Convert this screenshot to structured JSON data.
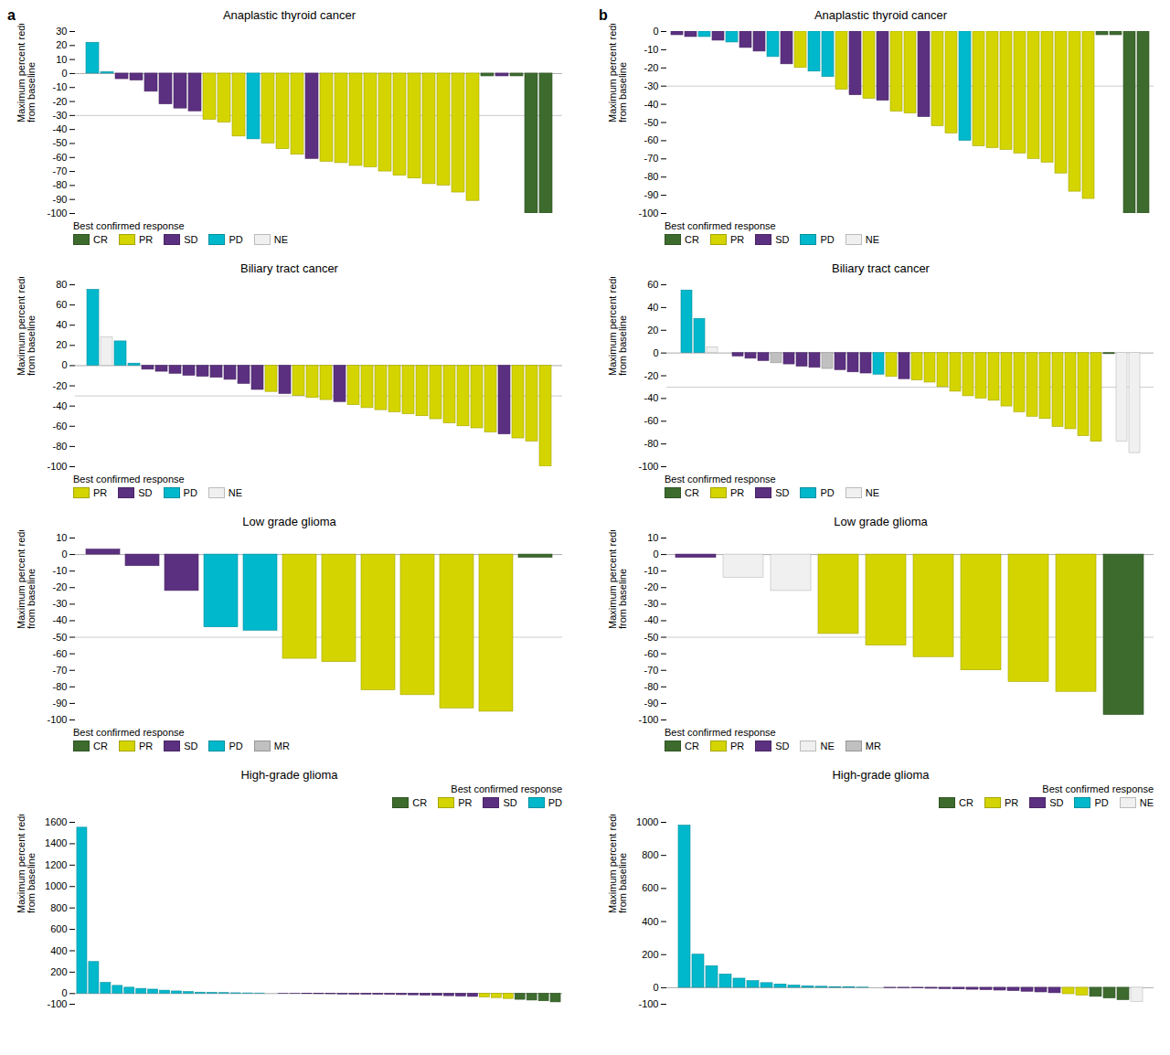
{
  "chart_data": [
    {
      "type": "bar",
      "title": "Anaplastic thyroid cancer",
      "panel_label": "a",
      "y_label": "Maximum percent reduction\nfrom baseline",
      "categories": [
        null,
        null,
        null,
        null,
        null,
        null,
        null,
        null,
        null,
        null,
        null,
        null,
        null,
        null,
        null,
        null,
        null,
        null,
        null,
        null,
        null,
        null,
        null,
        null,
        null,
        null,
        null,
        null,
        null,
        null,
        null,
        null
      ],
      "values": [
        22,
        1,
        -4,
        -5,
        -13,
        -22,
        -25,
        -27,
        -33,
        -35,
        -45,
        -47,
        -50,
        -54,
        -58,
        -61,
        -63,
        -64,
        -66,
        -67,
        -70,
        -73,
        -75,
        -79,
        -80,
        -85,
        -91,
        -2,
        -2,
        -2,
        -100,
        -100
      ],
      "colors": [
        "#00b8cc",
        "#00b8cc",
        "#5c3080",
        "#5c3080",
        "#5c3080",
        "#5c3080",
        "#5c3080",
        "#5c3080",
        "#d4d400",
        "#d4d400",
        "#d4d400",
        "#00b8cc",
        "#d4d400",
        "#d4d400",
        "#d4d400",
        "#5c3080",
        "#d4d400",
        "#d4d400",
        "#d4d400",
        "#d4d400",
        "#d4d400",
        "#d4d400",
        "#d4d400",
        "#d4d400",
        "#d4d400",
        "#d4d400",
        "#d4d400",
        "#3d6b2e",
        "#5c3080",
        "#3d6b2e",
        "#3d6b2e",
        "#3d6b2e"
      ],
      "ylim": [
        -100,
        30
      ],
      "yticks": [
        -100,
        -90,
        -80,
        -70,
        -60,
        -50,
        -40,
        -30,
        -20,
        -10,
        0,
        10,
        20,
        30
      ],
      "reference_line": -30,
      "legend": "lower left",
      "legend_title": "Best confirmed response",
      "legend_entries": [
        {
          "name": "CR",
          "color": "#3d6b2e"
        },
        {
          "name": "PR",
          "color": "#d4d400"
        },
        {
          "name": "SD",
          "color": "#5c3080"
        },
        {
          "name": "PD",
          "color": "#00b8cc"
        },
        {
          "name": "NE",
          "color": "#f0f0f0"
        }
      ],
      "tick_labels": "y"
    },
    {
      "type": "bar",
      "title": "Anaplastic thyroid cancer",
      "panel_label": "b",
      "y_label": "Maximum percent reduction\nfrom baseline",
      "categories": [
        null,
        null,
        null,
        null,
        null,
        null,
        null,
        null,
        null,
        null,
        null,
        null,
        null,
        null,
        null,
        null,
        null,
        null,
        null,
        null,
        null,
        null,
        null,
        null,
        null,
        null,
        null,
        null,
        null,
        null,
        null,
        null,
        null,
        null,
        null
      ],
      "values": [
        -2,
        -3,
        -3,
        -5,
        -6,
        -9,
        -11,
        -14,
        -18,
        -20,
        -22,
        -25,
        -32,
        -35,
        -37,
        -38,
        -44,
        -45,
        -47,
        -52,
        -56,
        -60,
        -63,
        -64,
        -65,
        -67,
        -70,
        -72,
        -78,
        -88,
        -92,
        -2,
        -2,
        -100,
        -100
      ],
      "colors": [
        "#5c3080",
        "#5c3080",
        "#00b8cc",
        "#5c3080",
        "#00b8cc",
        "#5c3080",
        "#5c3080",
        "#00b8cc",
        "#5c3080",
        "#d4d400",
        "#00b8cc",
        "#00b8cc",
        "#d4d400",
        "#5c3080",
        "#d4d400",
        "#5c3080",
        "#d4d400",
        "#d4d400",
        "#5c3080",
        "#d4d400",
        "#d4d400",
        "#00b8cc",
        "#d4d400",
        "#d4d400",
        "#d4d400",
        "#d4d400",
        "#d4d400",
        "#d4d400",
        "#d4d400",
        "#d4d400",
        "#d4d400",
        "#3d6b2e",
        "#3d6b2e",
        "#3d6b2e",
        "#3d6b2e"
      ],
      "ylim": [
        -100,
        0
      ],
      "yticks": [
        -100,
        -90,
        -80,
        -70,
        -60,
        -50,
        -40,
        -30,
        -20,
        -10,
        0
      ],
      "reference_line": -30,
      "legend": "lower left",
      "legend_title": "Best confirmed response",
      "legend_entries": [
        {
          "name": "CR",
          "color": "#3d6b2e"
        },
        {
          "name": "PR",
          "color": "#d4d400"
        },
        {
          "name": "SD",
          "color": "#5c3080"
        },
        {
          "name": "PD",
          "color": "#00b8cc"
        },
        {
          "name": "NE",
          "color": "#f0f0f0"
        }
      ],
      "tick_labels": "y"
    },
    {
      "type": "bar",
      "title": "Biliary tract cancer",
      "y_label": "Maximum percent reduction\nfrom baseline",
      "categories": [
        null,
        null,
        null,
        null,
        null,
        null,
        null,
        null,
        null,
        null,
        null,
        null,
        null,
        null,
        null,
        null,
        null,
        null,
        null,
        null,
        null,
        null,
        null,
        null,
        null,
        null,
        null,
        null,
        null,
        null,
        null,
        null,
        null,
        null
      ],
      "values": [
        75,
        28,
        24,
        2,
        -4,
        -6,
        -8,
        -10,
        -11,
        -12,
        -14,
        -18,
        -24,
        -26,
        -28,
        -30,
        -32,
        -34,
        -36,
        -39,
        -42,
        -44,
        -46,
        -48,
        -50,
        -53,
        -57,
        -60,
        -62,
        -66,
        -68,
        -72,
        -75,
        -100
      ],
      "colors": [
        "#00b8cc",
        "#f0f0f0",
        "#00b8cc",
        "#00b8cc",
        "#5c3080",
        "#5c3080",
        "#5c3080",
        "#5c3080",
        "#5c3080",
        "#5c3080",
        "#5c3080",
        "#5c3080",
        "#5c3080",
        "#d4d400",
        "#5c3080",
        "#d4d400",
        "#d4d400",
        "#d4d400",
        "#5c3080",
        "#d4d400",
        "#d4d400",
        "#d4d400",
        "#d4d400",
        "#d4d400",
        "#d4d400",
        "#d4d400",
        "#d4d400",
        "#d4d400",
        "#d4d400",
        "#d4d400",
        "#5c3080",
        "#d4d400",
        "#d4d400",
        "#d4d400"
      ],
      "ylim": [
        -100,
        80
      ],
      "yticks": [
        -100,
        -80,
        -60,
        -40,
        -20,
        0,
        20,
        40,
        60,
        80
      ],
      "reference_line": -30,
      "legend": "lower left",
      "legend_title": "Best confirmed response",
      "legend_entries": [
        {
          "name": "PR",
          "color": "#d4d400"
        },
        {
          "name": "SD",
          "color": "#5c3080"
        },
        {
          "name": "PD",
          "color": "#00b8cc"
        },
        {
          "name": "NE",
          "color": "#f0f0f0"
        }
      ],
      "tick_labels": "y"
    },
    {
      "type": "bar",
      "title": "Biliary tract cancer",
      "y_label": "Maximum percent reduction\nfrom baseline",
      "categories": [
        null,
        null,
        null,
        null,
        null,
        null,
        null,
        null,
        null,
        null,
        null,
        null,
        null,
        null,
        null,
        null,
        null,
        null,
        null,
        null,
        null,
        null,
        null,
        null,
        null,
        null,
        null,
        null,
        null,
        null,
        null,
        null,
        null,
        null,
        null,
        null
      ],
      "values": [
        55,
        30,
        5,
        0,
        -3,
        -5,
        -7,
        -9,
        -10,
        -12,
        -13,
        -14,
        -15,
        -17,
        -18,
        -19,
        -21,
        -23,
        -24,
        -26,
        -30,
        -34,
        -38,
        -40,
        -42,
        -47,
        -52,
        -56,
        -58,
        -65,
        -67,
        -73,
        -78,
        -1,
        -78,
        -88
      ],
      "colors": [
        "#00b8cc",
        "#00b8cc",
        "#f0f0f0",
        "#5c3080",
        "#5c3080",
        "#5c3080",
        "#5c3080",
        "#c0c0c0",
        "#5c3080",
        "#5c3080",
        "#5c3080",
        "#c0c0c0",
        "#5c3080",
        "#5c3080",
        "#5c3080",
        "#00b8cc",
        "#d4d400",
        "#5c3080",
        "#d4d400",
        "#d4d400",
        "#d4d400",
        "#d4d400",
        "#d4d400",
        "#d4d400",
        "#d4d400",
        "#d4d400",
        "#d4d400",
        "#d4d400",
        "#d4d400",
        "#d4d400",
        "#d4d400",
        "#d4d400",
        "#d4d400",
        "#3d6b2e",
        "#f0f0f0",
        "#f0f0f0"
      ],
      "ylim": [
        -100,
        60
      ],
      "yticks": [
        -100,
        -80,
        -60,
        -40,
        -20,
        0,
        20,
        40,
        60
      ],
      "reference_line": -30,
      "legend": "lower left",
      "legend_title": "Best confirmed response",
      "legend_entries": [
        {
          "name": "CR",
          "color": "#3d6b2e"
        },
        {
          "name": "PR",
          "color": "#d4d400"
        },
        {
          "name": "SD",
          "color": "#5c3080"
        },
        {
          "name": "PD",
          "color": "#00b8cc"
        },
        {
          "name": "NE",
          "color": "#f0f0f0"
        }
      ],
      "tick_labels": "y"
    },
    {
      "type": "bar",
      "title": "Low grade glioma",
      "y_label": "Maximum percent reduction\nfrom baseline",
      "categories": [
        null,
        null,
        null,
        null,
        null,
        null,
        null,
        null,
        null,
        null,
        null,
        null
      ],
      "values": [
        3,
        -7,
        -22,
        -44,
        -46,
        -63,
        -65,
        -82,
        -85,
        -93,
        -95,
        -2
      ],
      "colors": [
        "#5c3080",
        "#5c3080",
        "#5c3080",
        "#00b8cc",
        "#00b8cc",
        "#d4d400",
        "#d4d400",
        "#d4d400",
        "#d4d400",
        "#d4d400",
        "#d4d400",
        "#3d6b2e"
      ],
      "ylim": [
        -100,
        10
      ],
      "yticks": [
        -100,
        -90,
        -80,
        -70,
        -60,
        -50,
        -40,
        -30,
        -20,
        -10,
        0,
        10
      ],
      "reference_line": -50,
      "legend": "lower left",
      "legend_title": "Best confirmed response",
      "legend_entries": [
        {
          "name": "CR",
          "color": "#3d6b2e"
        },
        {
          "name": "PR",
          "color": "#d4d400"
        },
        {
          "name": "SD",
          "color": "#5c3080"
        },
        {
          "name": "PD",
          "color": "#00b8cc"
        },
        {
          "name": "MR",
          "color": "#c0c0c0"
        }
      ],
      "tick_labels": "y"
    },
    {
      "type": "bar",
      "title": "Low grade glioma",
      "y_label": "Maximum percent reduction\nfrom baseline",
      "categories": [
        null,
        null,
        null,
        null,
        null,
        null,
        null,
        null,
        null,
        null
      ],
      "values": [
        -2,
        -14,
        -22,
        -48,
        -55,
        -62,
        -70,
        -77,
        -83,
        -97
      ],
      "colors": [
        "#5c3080",
        "#f0f0f0",
        "#f0f0f0",
        "#d4d400",
        "#d4d400",
        "#d4d400",
        "#d4d400",
        "#d4d400",
        "#d4d400",
        "#3d6b2e"
      ],
      "ylim": [
        -100,
        10
      ],
      "yticks": [
        -100,
        -90,
        -80,
        -70,
        -60,
        -50,
        -40,
        -30,
        -20,
        -10,
        0,
        10
      ],
      "reference_line": -50,
      "legend": "lower left",
      "legend_title": "Best confirmed response",
      "legend_entries": [
        {
          "name": "CR",
          "color": "#3d6b2e"
        },
        {
          "name": "PR",
          "color": "#d4d400"
        },
        {
          "name": "SD",
          "color": "#5c3080"
        },
        {
          "name": "NE",
          "color": "#f0f0f0"
        },
        {
          "name": "MR",
          "color": "#c0c0c0"
        }
      ],
      "tick_labels": "y"
    },
    {
      "type": "bar",
      "title": "High-grade glioma",
      "y_label": "Maximum percent reduction\nfrom baseline",
      "categories": [
        null,
        null,
        null,
        null,
        null,
        null,
        null,
        null,
        null,
        null,
        null,
        null,
        null,
        null,
        null,
        null,
        null,
        null,
        null,
        null,
        null,
        null,
        null,
        null,
        null,
        null,
        null,
        null,
        null,
        null,
        null,
        null,
        null,
        null,
        null,
        null,
        null,
        null,
        null,
        null,
        null
      ],
      "values": [
        1550,
        295,
        100,
        72,
        55,
        44,
        37,
        27,
        20,
        14,
        9,
        7,
        5,
        3,
        2,
        1,
        0,
        -2,
        -3,
        -4,
        -5,
        -6,
        -8,
        -9,
        -10,
        -11,
        -12,
        -14,
        -16,
        -19,
        -21,
        -24,
        -27,
        -31,
        -36,
        -42,
        -50,
        -58,
        -65,
        -72,
        -82
      ],
      "colors": [
        "#00b8cc",
        "#00b8cc",
        "#00b8cc",
        "#00b8cc",
        "#00b8cc",
        "#00b8cc",
        "#00b8cc",
        "#00b8cc",
        "#00b8cc",
        "#00b8cc",
        "#00b8cc",
        "#00b8cc",
        "#00b8cc",
        "#00b8cc",
        "#00b8cc",
        "#00b8cc",
        "#5c3080",
        "#5c3080",
        "#5c3080",
        "#5c3080",
        "#5c3080",
        "#5c3080",
        "#5c3080",
        "#5c3080",
        "#5c3080",
        "#5c3080",
        "#5c3080",
        "#5c3080",
        "#5c3080",
        "#5c3080",
        "#5c3080",
        "#5c3080",
        "#5c3080",
        "#5c3080",
        "#d4d400",
        "#d4d400",
        "#d4d400",
        "#3d6b2e",
        "#3d6b2e",
        "#3d6b2e",
        "#3d6b2e"
      ],
      "ylim": [
        -100,
        1600
      ],
      "yticks": [
        -100,
        0,
        200,
        400,
        600,
        800,
        1000,
        1200,
        1400,
        1600
      ],
      "reference_line": null,
      "legend": "upper right",
      "legend_title": "Best confirmed response",
      "legend_entries": [
        {
          "name": "CR",
          "color": "#3d6b2e"
        },
        {
          "name": "PR",
          "color": "#d4d400"
        },
        {
          "name": "SD",
          "color": "#5c3080"
        },
        {
          "name": "PD",
          "color": "#00b8cc"
        }
      ],
      "tick_labels": "y"
    },
    {
      "type": "bar",
      "title": "High-grade glioma",
      "y_label": "Maximum percent reduction\nfrom baseline",
      "categories": [
        null,
        null,
        null,
        null,
        null,
        null,
        null,
        null,
        null,
        null,
        null,
        null,
        null,
        null,
        null,
        null,
        null,
        null,
        null,
        null,
        null,
        null,
        null,
        null,
        null,
        null,
        null,
        null,
        null,
        null,
        null,
        null,
        null,
        null
      ],
      "values": [
        980,
        200,
        130,
        80,
        55,
        40,
        28,
        20,
        13,
        9,
        6,
        3,
        2,
        1,
        0,
        -2,
        -3,
        -4,
        -6,
        -8,
        -10,
        -12,
        -14,
        -17,
        -20,
        -24,
        -28,
        -33,
        -39,
        -47,
        -55,
        -65,
        -75,
        -86
      ],
      "colors": [
        "#00b8cc",
        "#00b8cc",
        "#00b8cc",
        "#00b8cc",
        "#00b8cc",
        "#00b8cc",
        "#00b8cc",
        "#00b8cc",
        "#00b8cc",
        "#00b8cc",
        "#00b8cc",
        "#00b8cc",
        "#00b8cc",
        "#00b8cc",
        "#5c3080",
        "#5c3080",
        "#5c3080",
        "#5c3080",
        "#5c3080",
        "#5c3080",
        "#5c3080",
        "#5c3080",
        "#5c3080",
        "#5c3080",
        "#5c3080",
        "#5c3080",
        "#5c3080",
        "#5c3080",
        "#d4d400",
        "#d4d400",
        "#3d6b2e",
        "#3d6b2e",
        "#3d6b2e",
        "#f0f0f0"
      ],
      "ylim": [
        -100,
        1000
      ],
      "yticks": [
        -100,
        0,
        200,
        400,
        600,
        800,
        1000
      ],
      "reference_line": null,
      "legend": "upper right",
      "legend_title": "Best confirmed response",
      "legend_entries": [
        {
          "name": "CR",
          "color": "#3d6b2e"
        },
        {
          "name": "PR",
          "color": "#d4d400"
        },
        {
          "name": "SD",
          "color": "#5c3080"
        },
        {
          "name": "PD",
          "color": "#00b8cc"
        },
        {
          "name": "NE",
          "color": "#f0f0f0"
        }
      ],
      "tick_labels": "y"
    }
  ]
}
